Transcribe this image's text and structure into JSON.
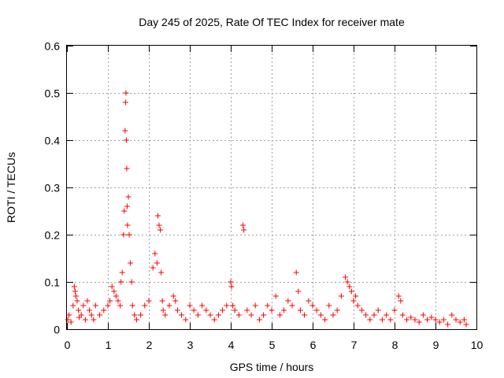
{
  "chart_data": {
    "type": "scatter",
    "title": "Day 245 of 2025, Rate Of TEC Index for receiver mate",
    "xlabel": "GPS time / hours",
    "ylabel": "ROTI / TECUs",
    "xlim": [
      0,
      10
    ],
    "ylim": [
      0,
      0.6
    ],
    "xticks": [
      "0",
      "1",
      "2",
      "3",
      "4",
      "5",
      "6",
      "7",
      "8",
      "9",
      "10"
    ],
    "yticks": [
      "0",
      "0.1",
      "0.2",
      "0.3",
      "0.4",
      "0.5",
      "0.6"
    ],
    "grid": true,
    "marker": "plus",
    "marker_color": "#ff0000",
    "series": [
      {
        "x": [
          0.02,
          0.05,
          0.1,
          0.15,
          0.18,
          0.2,
          0.22,
          0.25,
          0.28,
          0.3,
          0.35,
          0.4,
          0.45,
          0.5,
          0.55,
          0.6,
          0.65,
          0.7,
          0.8,
          0.9,
          1.0,
          1.05,
          1.1,
          1.15,
          1.2,
          1.25,
          1.3,
          1.32,
          1.35,
          1.38,
          1.4,
          1.42,
          1.43,
          1.44,
          1.45,
          1.46,
          1.47,
          1.48,
          1.5,
          1.52,
          1.55,
          1.58,
          1.6,
          1.65,
          1.7,
          1.8,
          1.9,
          2.0,
          2.1,
          2.15,
          2.2,
          2.22,
          2.25,
          2.28,
          2.3,
          2.33,
          2.35,
          2.4,
          2.5,
          2.6,
          2.65,
          2.7,
          2.8,
          2.9,
          3.0,
          3.1,
          3.2,
          3.3,
          3.4,
          3.5,
          3.6,
          3.7,
          3.8,
          3.9,
          4.0,
          4.02,
          4.05,
          4.1,
          4.2,
          4.3,
          4.32,
          4.4,
          4.5,
          4.6,
          4.7,
          4.8,
          4.9,
          5.0,
          5.1,
          5.2,
          5.3,
          5.4,
          5.5,
          5.6,
          5.65,
          5.7,
          5.8,
          5.9,
          6.0,
          6.1,
          6.2,
          6.3,
          6.4,
          6.5,
          6.6,
          6.7,
          6.8,
          6.85,
          6.9,
          6.95,
          7.0,
          7.05,
          7.1,
          7.2,
          7.3,
          7.4,
          7.5,
          7.6,
          7.7,
          7.8,
          7.9,
          8.0,
          8.1,
          8.15,
          8.2,
          8.3,
          8.4,
          8.5,
          8.6,
          8.7,
          8.8,
          8.9,
          9.0,
          9.1,
          9.2,
          9.3,
          9.4,
          9.5,
          9.6,
          9.7,
          9.75
        ],
        "y": [
          0.02,
          0.03,
          0.015,
          0.05,
          0.09,
          0.08,
          0.07,
          0.06,
          0.04,
          0.025,
          0.03,
          0.05,
          0.02,
          0.06,
          0.04,
          0.03,
          0.02,
          0.05,
          0.03,
          0.04,
          0.05,
          0.06,
          0.09,
          0.08,
          0.07,
          0.06,
          0.05,
          0.1,
          0.12,
          0.2,
          0.25,
          0.42,
          0.48,
          0.5,
          0.4,
          0.34,
          0.26,
          0.22,
          0.28,
          0.2,
          0.14,
          0.1,
          0.05,
          0.03,
          0.02,
          0.03,
          0.05,
          0.06,
          0.13,
          0.16,
          0.14,
          0.24,
          0.22,
          0.21,
          0.12,
          0.06,
          0.04,
          0.03,
          0.05,
          0.07,
          0.06,
          0.04,
          0.03,
          0.02,
          0.05,
          0.04,
          0.03,
          0.05,
          0.04,
          0.03,
          0.02,
          0.03,
          0.04,
          0.05,
          0.1,
          0.09,
          0.05,
          0.04,
          0.03,
          0.22,
          0.21,
          0.04,
          0.03,
          0.05,
          0.02,
          0.03,
          0.05,
          0.04,
          0.07,
          0.03,
          0.04,
          0.06,
          0.05,
          0.12,
          0.08,
          0.04,
          0.03,
          0.06,
          0.05,
          0.04,
          0.03,
          0.02,
          0.05,
          0.03,
          0.04,
          0.07,
          0.11,
          0.1,
          0.09,
          0.08,
          0.06,
          0.07,
          0.05,
          0.04,
          0.03,
          0.02,
          0.03,
          0.04,
          0.02,
          0.03,
          0.02,
          0.04,
          0.07,
          0.06,
          0.03,
          0.02,
          0.025,
          0.02,
          0.015,
          0.03,
          0.02,
          0.025,
          0.02,
          0.015,
          0.02,
          0.01,
          0.03,
          0.02,
          0.015,
          0.02,
          0.01
        ]
      }
    ]
  }
}
